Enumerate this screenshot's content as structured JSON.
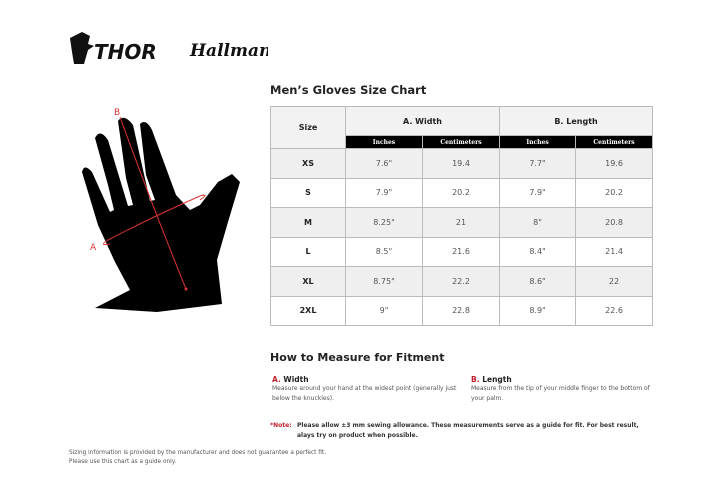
{
  "brand": {
    "logo1": "THOR",
    "logo2": "Hallman"
  },
  "colors": {
    "accent": "#c0202c",
    "header_bg": "#000000",
    "alt_row": "#efefef"
  },
  "chart": {
    "title": "Men’s Gloves Size Chart",
    "size_header": "Size",
    "groups": [
      "A. Width",
      "B. Length"
    ],
    "subheaders": [
      "Inches",
      "Centimeters",
      "Inches",
      "Centimeters"
    ],
    "rows": [
      {
        "size": "XS",
        "values": [
          "7.6\"",
          "19.4",
          "7.7\"",
          "19.6"
        ]
      },
      {
        "size": "S",
        "values": [
          "7.9\"",
          "20.2",
          "7.9\"",
          "20.2"
        ]
      },
      {
        "size": "M",
        "values": [
          "8.25\"",
          "21",
          "8\"",
          "20.8"
        ]
      },
      {
        "size": "L",
        "values": [
          "8.5\"",
          "21.6",
          "8.4\"",
          "21.4"
        ]
      },
      {
        "size": "XL",
        "values": [
          "8.75\"",
          "22.2",
          "8.6\"",
          "22"
        ]
      },
      {
        "size": "2XL",
        "values": [
          "9\"",
          "22.8",
          "8.9\"",
          "22.6"
        ]
      }
    ]
  },
  "diagram": {
    "label_a": "A",
    "label_b": "B"
  },
  "measure": {
    "title": "How to Measure for Fitment",
    "width": {
      "letter": "A.",
      "label": "Width",
      "desc": "Measure around your hand at the widest point (generally just below the knuckles)."
    },
    "length": {
      "letter": "B.",
      "label": "Length",
      "desc": "Measure from the tip of your middle finger to the bottom of your palm."
    },
    "note_label": "*Note:",
    "note": "Please allow ±3 mm sewing allowance. These measurements serve as a guide for fit. For best result, alays try on product when possible."
  },
  "footer": {
    "line1": "Sizing information is provided by the manufacturer and does not guarantee a perfect fit.",
    "line2": "Please use this chart as a guide only."
  }
}
